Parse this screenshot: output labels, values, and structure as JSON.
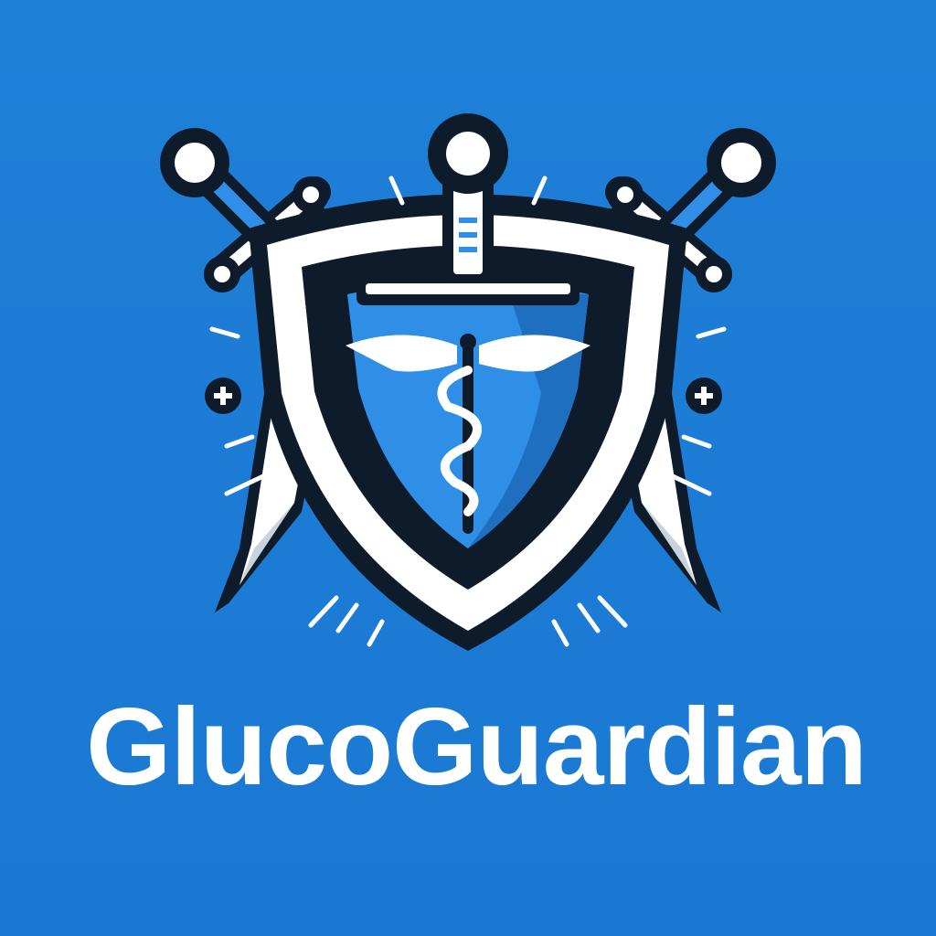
{
  "brand": {
    "name": "GlucoGuardian"
  },
  "colors": {
    "background": "#1a7ad4",
    "outline": "#0d1b2a",
    "white": "#ffffff",
    "shield_blue": "#2f8ee6",
    "shield_dark": "#1f6fc0",
    "blade_shade": "#c9d3dc"
  },
  "icons": {
    "emblem": "shield-with-crossed-swords-icon",
    "center_symbol": "caduceus-icon",
    "side_marks": "plus-circle-icon"
  }
}
